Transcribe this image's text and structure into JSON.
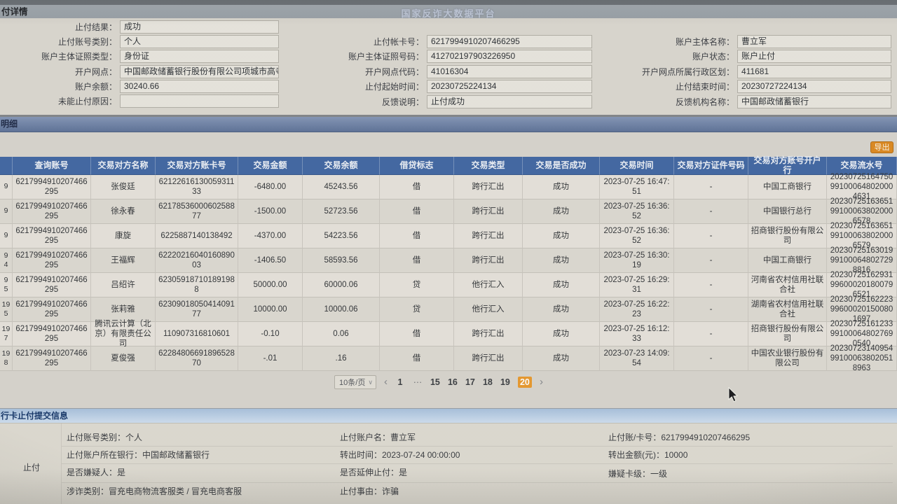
{
  "page_title": "付详情",
  "platform_title": "国家反诈大数据平台",
  "detail_form": {
    "left": [
      {
        "label": "止付结果：",
        "value": "成功"
      },
      {
        "label": "止付账号类别：",
        "value": "个人"
      },
      {
        "label": "账户主体证照类型：",
        "value": "身份证"
      },
      {
        "label": "开户网点：",
        "value": "中国邮政储蓄银行股份有限公司项城市高寺..."
      },
      {
        "label": "账户余额：",
        "value": "30240.66"
      },
      {
        "label": "未能止付原因：",
        "value": ""
      }
    ],
    "middle": [
      {
        "label": "止付帐卡号：",
        "value": "6217994910207466295"
      },
      {
        "label": "账户主体证照号码：",
        "value": "412702197903226950"
      },
      {
        "label": "开户网点代码：",
        "value": "41016304"
      },
      {
        "label": "止付起始时间：",
        "value": "20230725224134"
      },
      {
        "label": "反馈说明：",
        "value": "止付成功"
      }
    ],
    "right": [
      {
        "label": "账户主体名称：",
        "value": "曹立军"
      },
      {
        "label": "账户状态：",
        "value": "账户止付"
      },
      {
        "label": "开户网点所属行政区划：",
        "value": "411681"
      },
      {
        "label": "止付结束时间：",
        "value": "20230727224134"
      },
      {
        "label": "反馈机构名称：",
        "value": "中国邮政储蓄银行"
      }
    ]
  },
  "detail_section_title": "明细",
  "export_label": "导出",
  "table": {
    "headers": [
      "查询账号",
      "交易对方名称",
      "交易对方账卡号",
      "交易金额",
      "交易余额",
      "借贷标志",
      "交易类型",
      "交易是否成功",
      "交易时间",
      "交易对方证件号码",
      "交易对方账号开户行",
      "交易流水号"
    ],
    "seq_fragments": [
      "9",
      "9",
      "9",
      "9\n4",
      "9\n5",
      "19\n5",
      "19\n7",
      "19\n8"
    ],
    "rows": [
      [
        "6217994910207466295",
        "张俊廷",
        "6212261613005931133",
        "-6480.00",
        "45243.56",
        "借",
        "跨行汇出",
        "成功",
        "2023-07-25 16:47:51",
        "-",
        "中国工商银行",
        "20230725164750991000648020004631"
      ],
      [
        "6217994910207466295",
        "徐永春",
        "6217853600060258877",
        "-1500.00",
        "52723.56",
        "借",
        "跨行汇出",
        "成功",
        "2023-07-25 16:36:52",
        "-",
        "中国银行总行",
        "20230725163651991000638020006578"
      ],
      [
        "6217994910207466295",
        "康旋",
        "6225887140138492",
        "-4370.00",
        "54223.56",
        "借",
        "跨行汇出",
        "成功",
        "2023-07-25 16:36:52",
        "-",
        "招商银行股份有限公司",
        "20230725163651991000638020006579"
      ],
      [
        "6217994910207466295",
        "王福辉",
        "6222021604016089003",
        "-1406.50",
        "58593.56",
        "借",
        "跨行汇出",
        "成功",
        "2023-07-25 16:30:19",
        "-",
        "中国工商银行",
        "20230725163019991000648027298816"
      ],
      [
        "6217994910207466295",
        "吕绍许",
        "623059187101891988",
        "50000.00",
        "60000.06",
        "贷",
        "他行汇入",
        "成功",
        "2023-07-25 16:29:31",
        "-",
        "河南省农村信用社联合社",
        "20230725162931996000201800796521"
      ],
      [
        "6217994910207466295",
        "张莉雅",
        "6230901805041409177",
        "10000.00",
        "10000.06",
        "贷",
        "他行汇入",
        "成功",
        "2023-07-25 16:22:23",
        "-",
        "湖南省农村信用社联合社",
        "20230725162223996000201500801697"
      ],
      [
        "6217994910207466295",
        "腾讯云计算（北京）有限责任公司",
        "110907316810601",
        "-0.10",
        "0.06",
        "借",
        "跨行汇出",
        "成功",
        "2023-07-25 16:12:33",
        "-",
        "招商银行股份有限公司",
        "20230725161233991000648027690540"
      ],
      [
        "6217994910207466295",
        "夏俊强",
        "6228480669189652870",
        "-.01",
        ".16",
        "借",
        "跨行汇出",
        "成功",
        "2023-07-23 14:09:54",
        "-",
        "中国农业银行股份有限公司",
        "20230723140954991000638020518963"
      ]
    ]
  },
  "pagination": {
    "size_label": "10条/页",
    "prev": "‹",
    "pages": [
      "1",
      "···",
      "15",
      "16",
      "17",
      "18",
      "19",
      "20"
    ],
    "active": "20",
    "next": "›"
  },
  "submit_section_title": "行卡止付提交信息",
  "submit_group_label": "止付",
  "submit_form": {
    "col1": [
      "止付账号类别：个人",
      "止付账户所在银行：中国邮政储蓄银行",
      "是否嫌疑人：是",
      "涉诈类别：冒充电商物流客服类 / 冒充电商客服"
    ],
    "col2": [
      "止付账户名：曹立军",
      "转出时间：2023-07-24 00:00:00",
      "是否延伸止付：是",
      "止付事由：诈骗"
    ],
    "col3": [
      "止付账/卡号：6217994910207466295",
      "转出金额(元)：10000",
      "嫌疑卡级：一级"
    ]
  },
  "colors": {
    "table_header_blue": "#4268a4",
    "export_orange": "#dd8a22",
    "active_page_orange": "#e89a2f"
  }
}
